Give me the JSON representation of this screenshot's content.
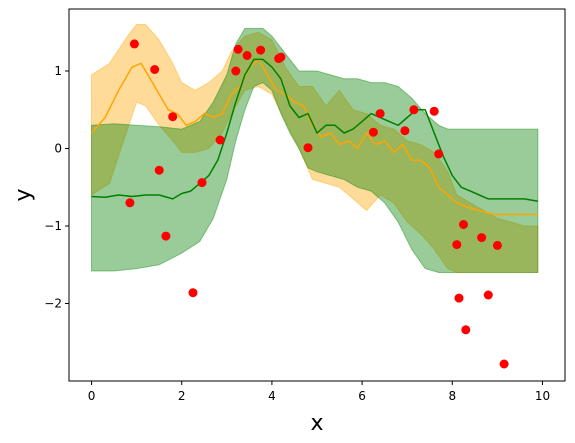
{
  "chart_data": {
    "type": "line",
    "xlabel": "x",
    "ylabel": "y",
    "xlim": [
      -0.5,
      10.5
    ],
    "ylim": [
      -3.0,
      1.8
    ],
    "xticks": [
      0,
      2,
      4,
      6,
      8,
      10
    ],
    "yticks": [
      -2,
      -1,
      0,
      1
    ],
    "ytick_labels": [
      "−2",
      "−1",
      "0",
      "1"
    ],
    "grid": false,
    "legend": "none",
    "colors": {
      "orange": "#FFA500",
      "green": "#008000",
      "points": "#FF0000"
    },
    "series": [
      {
        "type": "band",
        "color": "#FFA500",
        "opacity": 0.4,
        "x": [
          0.0,
          0.4,
          0.8,
          1.0,
          1.2,
          1.5,
          1.8,
          2.0,
          2.3,
          2.6,
          2.9,
          3.1,
          3.4,
          3.7,
          4.0,
          4.3,
          4.6,
          4.9,
          5.2,
          5.5,
          5.8,
          6.1,
          6.4,
          6.7,
          7.0,
          7.3,
          7.6,
          7.9,
          8.1,
          8.4,
          8.7,
          9.0,
          9.3,
          9.6,
          9.9
        ],
        "upper": [
          0.95,
          1.1,
          1.45,
          1.6,
          1.6,
          1.4,
          1.1,
          0.85,
          0.75,
          0.85,
          1.0,
          1.25,
          1.45,
          1.5,
          1.4,
          1.05,
          0.8,
          0.8,
          0.55,
          0.75,
          0.5,
          0.45,
          0.3,
          0.25,
          0.1,
          0.05,
          -0.05,
          -0.3,
          -0.6,
          -0.7,
          -0.8,
          -0.9,
          -0.95,
          -1.0,
          -1.0
        ],
        "lower": [
          -0.6,
          -0.45,
          0.25,
          0.6,
          0.55,
          0.3,
          0.1,
          -0.05,
          -0.05,
          0.0,
          0.2,
          0.45,
          0.75,
          0.8,
          0.7,
          0.35,
          0.0,
          -0.4,
          -0.45,
          -0.5,
          -0.65,
          -0.8,
          -0.6,
          -0.7,
          -0.95,
          -1.1,
          -1.3,
          -1.55,
          -1.6,
          -1.6,
          -1.6,
          -1.6,
          -1.6,
          -1.6,
          -1.6
        ]
      },
      {
        "type": "band",
        "color": "#008000",
        "opacity": 0.4,
        "x": [
          0.0,
          0.5,
          1.0,
          1.5,
          2.0,
          2.4,
          2.7,
          3.0,
          3.2,
          3.4,
          3.6,
          3.8,
          4.0,
          4.2,
          4.4,
          4.6,
          4.8,
          5.0,
          5.3,
          5.6,
          5.9,
          6.2,
          6.5,
          6.8,
          7.1,
          7.4,
          7.7,
          7.9,
          8.1,
          8.4,
          8.7,
          9.0,
          9.3,
          9.6,
          9.9
        ],
        "upper": [
          0.3,
          0.32,
          0.3,
          0.28,
          0.25,
          0.35,
          0.6,
          0.95,
          1.35,
          1.55,
          1.55,
          1.55,
          1.45,
          1.3,
          1.15,
          1.0,
          1.0,
          1.0,
          0.95,
          0.9,
          0.9,
          0.85,
          0.85,
          0.8,
          0.65,
          0.45,
          0.3,
          0.25,
          0.25,
          0.25,
          0.25,
          0.25,
          0.25,
          0.25,
          0.25
        ],
        "lower": [
          -1.58,
          -1.58,
          -1.55,
          -1.5,
          -1.35,
          -1.2,
          -0.9,
          -0.4,
          0.1,
          0.5,
          0.8,
          0.85,
          0.75,
          0.45,
          0.2,
          0.0,
          -0.25,
          -0.3,
          -0.35,
          -0.4,
          -0.5,
          -0.55,
          -0.7,
          -0.95,
          -1.3,
          -1.55,
          -1.6,
          -1.6,
          -1.6,
          -1.6,
          -1.6,
          -1.6,
          -1.6,
          -1.6,
          -1.6
        ]
      },
      {
        "type": "line",
        "color": "#FFA500",
        "x": [
          0.0,
          0.3,
          0.6,
          0.9,
          1.1,
          1.3,
          1.5,
          1.7,
          1.9,
          2.1,
          2.3,
          2.5,
          2.7,
          2.9,
          3.1,
          3.3,
          3.5,
          3.7,
          3.9,
          4.1,
          4.3,
          4.5,
          4.7,
          4.9,
          5.1,
          5.3,
          5.5,
          5.7,
          5.9,
          6.1,
          6.3,
          6.5,
          6.7,
          6.9,
          7.1,
          7.3,
          7.5,
          7.7,
          7.9,
          8.1,
          8.3,
          8.6,
          8.9,
          9.2,
          9.5,
          9.9
        ],
        "y": [
          0.2,
          0.4,
          0.75,
          1.05,
          1.1,
          0.9,
          0.7,
          0.5,
          0.45,
          0.3,
          0.35,
          0.45,
          0.4,
          0.45,
          0.7,
          0.8,
          1.05,
          1.15,
          0.95,
          0.75,
          0.7,
          0.6,
          0.55,
          0.3,
          0.15,
          0.2,
          0.05,
          0.1,
          0.0,
          0.2,
          0.05,
          0.1,
          -0.05,
          0.05,
          -0.15,
          -0.15,
          -0.25,
          -0.5,
          -0.6,
          -0.7,
          -0.75,
          -0.8,
          -0.85,
          -0.85,
          -0.85,
          -0.85
        ]
      },
      {
        "type": "line",
        "color": "#008000",
        "x": [
          0.0,
          0.3,
          0.6,
          0.9,
          1.2,
          1.5,
          1.8,
          2.0,
          2.2,
          2.4,
          2.6,
          2.8,
          3.0,
          3.2,
          3.4,
          3.6,
          3.8,
          4.0,
          4.2,
          4.4,
          4.6,
          4.8,
          5.0,
          5.2,
          5.4,
          5.6,
          5.8,
          6.0,
          6.2,
          6.4,
          6.6,
          6.8,
          7.0,
          7.2,
          7.4,
          7.6,
          7.8,
          8.0,
          8.2,
          8.4,
          8.6,
          8.8,
          9.0,
          9.3,
          9.6,
          9.9
        ],
        "y": [
          -0.62,
          -0.63,
          -0.6,
          -0.62,
          -0.6,
          -0.6,
          -0.65,
          -0.58,
          -0.55,
          -0.45,
          -0.35,
          -0.15,
          0.2,
          0.6,
          0.95,
          1.15,
          1.15,
          1.05,
          0.9,
          0.55,
          0.4,
          0.45,
          0.2,
          0.3,
          0.3,
          0.2,
          0.25,
          0.35,
          0.45,
          0.4,
          0.35,
          0.3,
          0.4,
          0.5,
          0.5,
          0.2,
          -0.1,
          -0.35,
          -0.5,
          -0.55,
          -0.6,
          -0.65,
          -0.65,
          -0.65,
          -0.65,
          -0.68
        ]
      },
      {
        "type": "scatter",
        "color": "#FF0000",
        "x": [
          0.85,
          0.95,
          1.4,
          1.5,
          1.65,
          1.8,
          2.25,
          2.45,
          2.85,
          3.2,
          3.25,
          3.45,
          3.75,
          4.15,
          4.2,
          4.8,
          6.25,
          6.4,
          6.95,
          7.15,
          7.6,
          7.7,
          8.1,
          8.15,
          8.25,
          8.3,
          8.65,
          8.8,
          9.0,
          9.15
        ],
        "y": [
          -0.7,
          1.35,
          1.02,
          -0.28,
          -1.13,
          0.41,
          -1.86,
          -0.44,
          0.11,
          1.0,
          1.28,
          1.2,
          1.27,
          1.16,
          1.18,
          0.01,
          0.21,
          0.45,
          0.23,
          0.5,
          0.48,
          -0.07,
          -1.24,
          -1.93,
          -0.98,
          -2.34,
          -1.15,
          -1.89,
          -1.25,
          -2.78
        ]
      }
    ]
  }
}
